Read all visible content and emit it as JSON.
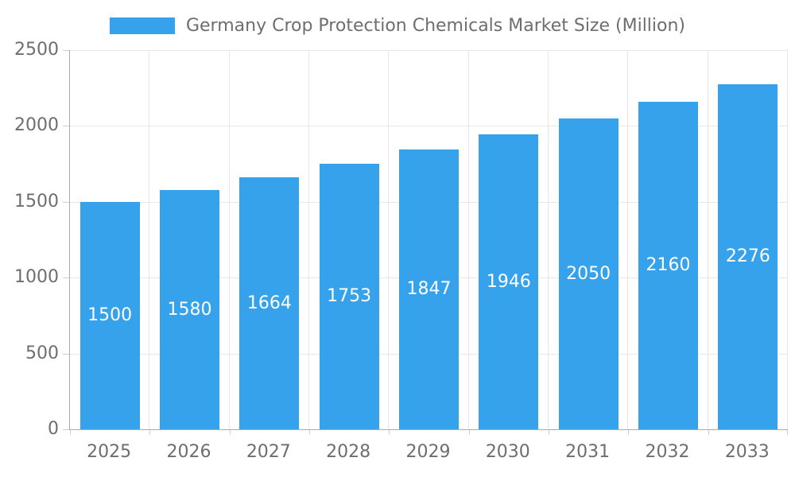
{
  "chart_data": {
    "type": "bar",
    "title": "Germany Crop Protection Chemicals Market Size (Million)",
    "legend": {
      "label": "Germany Crop Protection Chemicals Market Size (Million)",
      "position": "top"
    },
    "categories": [
      "2025",
      "2026",
      "2027",
      "2028",
      "2029",
      "2030",
      "2031",
      "2032",
      "2033"
    ],
    "values": [
      1500,
      1580,
      1664,
      1753,
      1847,
      1946,
      2050,
      2160,
      2276
    ],
    "xlabel": "",
    "ylabel": "",
    "ylim": [
      0,
      2500
    ],
    "yticks": [
      0,
      500,
      1000,
      1500,
      2000,
      2500
    ],
    "grid": true,
    "data_labels": "inside-center",
    "colors": {
      "bar": "#36A2EB",
      "bar_label": "#ffffff",
      "axis_text": "#6e6e6e",
      "gridline": "#e7e7e7",
      "axis_line": "#ababab",
      "background": "#ffffff"
    }
  }
}
